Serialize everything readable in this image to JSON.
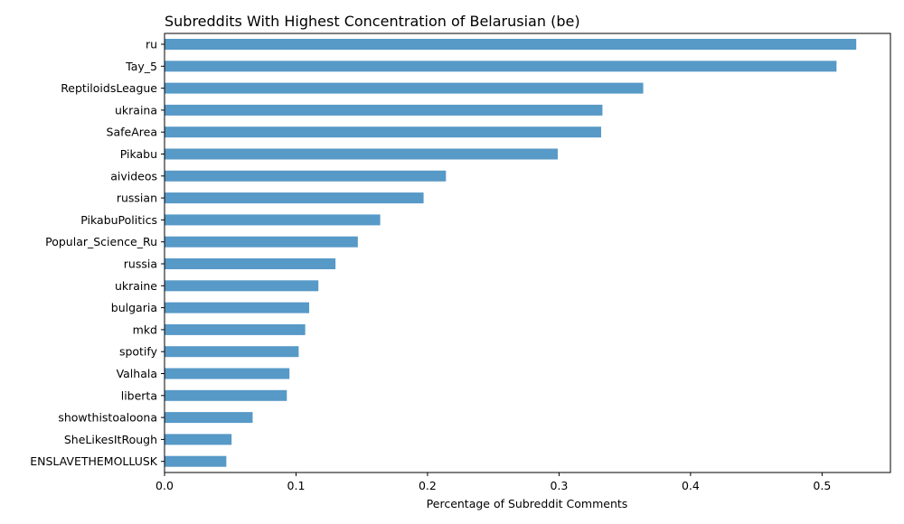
{
  "chart_data": {
    "type": "bar",
    "orientation": "horizontal",
    "title": "Subreddits With Highest Concentration of Belarusian (be)",
    "xlabel": "Percentage of Subreddit Comments",
    "ylabel": "",
    "xlim": [
      0,
      0.552
    ],
    "xticks": [
      "0.0",
      "0.1",
      "0.2",
      "0.3",
      "0.4",
      "0.5"
    ],
    "bar_color": "#5799c7",
    "grid": false,
    "categories": [
      "ru",
      "Tay_5",
      "ReptiloidsLeague",
      "ukraina",
      "SafeArea",
      "Pikabu",
      "aivideos",
      "russian",
      "PikabuPolitics",
      "Popular_Science_Ru",
      "russia",
      "ukraine",
      "bulgaria",
      "mkd",
      "spotify",
      "Valhala",
      "liberta",
      "showthistoaloona",
      "SheLikesItRough",
      "ENSLAVETHEMOLLUSK"
    ],
    "values": [
      0.526,
      0.511,
      0.364,
      0.333,
      0.332,
      0.299,
      0.214,
      0.197,
      0.164,
      0.147,
      0.13,
      0.117,
      0.11,
      0.107,
      0.102,
      0.095,
      0.093,
      0.067,
      0.051,
      0.047
    ]
  }
}
